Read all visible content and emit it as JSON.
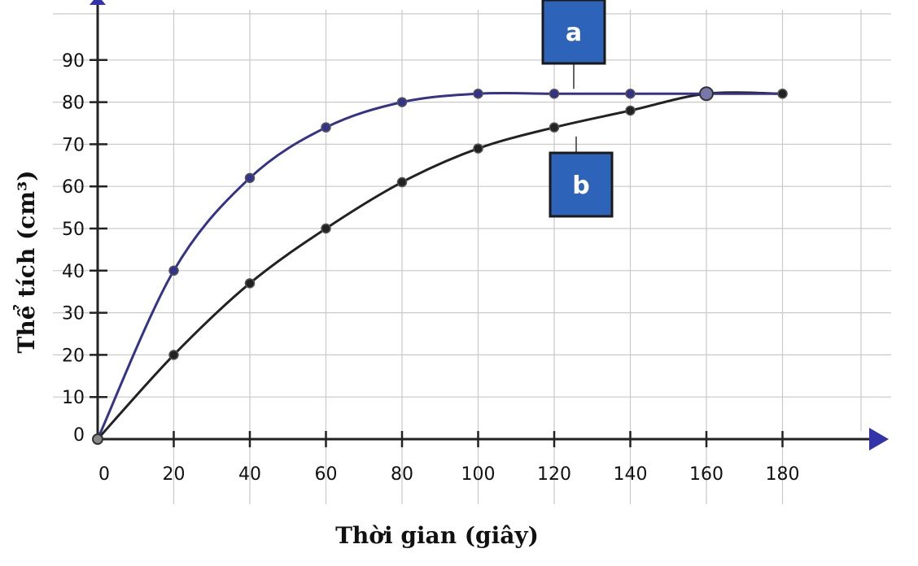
{
  "chart_data": {
    "type": "line",
    "xlabel": "Thời gian (giây)",
    "ylabel": "Thể tích (cm³)",
    "x_ticks": [
      "0",
      "20",
      "40",
      "60",
      "80",
      "100",
      "120",
      "140",
      "160",
      "180"
    ],
    "y_ticks": [
      "0",
      "10",
      "20",
      "30",
      "40",
      "50",
      "60",
      "70",
      "80",
      "90"
    ],
    "xlim": [
      0,
      180
    ],
    "ylim": [
      0,
      90
    ],
    "grid": true,
    "series": [
      {
        "name": "a",
        "color": "#33338a",
        "points": [
          [
            0,
            0
          ],
          [
            20,
            40
          ],
          [
            40,
            62
          ],
          [
            60,
            74
          ],
          [
            80,
            80
          ],
          [
            100,
            82
          ],
          [
            120,
            82
          ],
          [
            140,
            82
          ],
          [
            160,
            82
          ],
          [
            180,
            82
          ]
        ]
      },
      {
        "name": "b",
        "color": "#222222",
        "points": [
          [
            0,
            0
          ],
          [
            20,
            20
          ],
          [
            40,
            37
          ],
          [
            60,
            50
          ],
          [
            80,
            61
          ],
          [
            100,
            69
          ],
          [
            120,
            74
          ],
          [
            140,
            78
          ],
          [
            160,
            82
          ],
          [
            180,
            82
          ]
        ]
      }
    ],
    "box_color": "#2d63b8"
  }
}
